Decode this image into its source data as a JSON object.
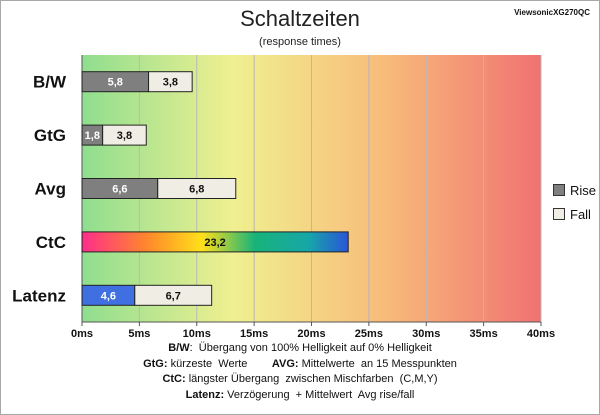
{
  "title": "Schaltzeiten",
  "subtitle": "(response times)",
  "brand": "ViewsonicXG270QC",
  "colors": {
    "rise": "#7f7f7f",
    "fall": "#efede4",
    "latency_rise": "#3f6fe0",
    "bar_border": "#222222"
  },
  "chart_data": {
    "type": "bar",
    "orientation": "horizontal",
    "stacked": true,
    "categories": [
      "B/W",
      "GtG",
      "Avg",
      "CtC",
      "Latenz"
    ],
    "series": [
      {
        "name": "Rise",
        "values": [
          5.8,
          1.8,
          6.6,
          23.2,
          4.6
        ]
      },
      {
        "name": "Fall",
        "values": [
          3.8,
          3.8,
          6.8,
          null,
          6.7
        ]
      }
    ],
    "value_labels": [
      [
        "5,8",
        "3,8"
      ],
      [
        "1,8",
        "3,8"
      ],
      [
        "6,6",
        "6,8"
      ],
      [
        "23,2"
      ],
      [
        "4,6",
        "6,7"
      ]
    ],
    "xlim": [
      0,
      40
    ],
    "xticks": [
      0,
      5,
      10,
      15,
      20,
      25,
      30,
      35,
      40
    ],
    "xtick_labels": [
      "0ms",
      "5ms",
      "10ms",
      "15ms",
      "20ms",
      "25ms",
      "30ms",
      "35ms",
      "40ms"
    ],
    "background_gradient": [
      "#8fde8f",
      "#f0f090",
      "#f8bb7a",
      "#f07272"
    ],
    "grid": true,
    "legend_position": "right"
  },
  "legend": {
    "rise": "Rise",
    "fall": "Fall"
  },
  "notes": [
    {
      "parts": [
        {
          "b": "B/W",
          "t": ":  Übergang von 100% Helligkeit auf 0% Helligkeit"
        }
      ]
    },
    {
      "parts": [
        {
          "b": "GtG:",
          "t": " kürzeste  Werte        "
        },
        {
          "b": "AVG:",
          "t": " Mittelwerte  an 15 Messpunkten"
        }
      ]
    },
    {
      "parts": [
        {
          "b": "CtC:",
          "t": " längster Übergang  zwischen Mischfarben  (C,M,Y)"
        }
      ]
    },
    {
      "parts": [
        {
          "b": "Latenz:",
          "t": " Verzögerung  + Mittelwert  Avg rise/fall"
        }
      ]
    }
  ]
}
